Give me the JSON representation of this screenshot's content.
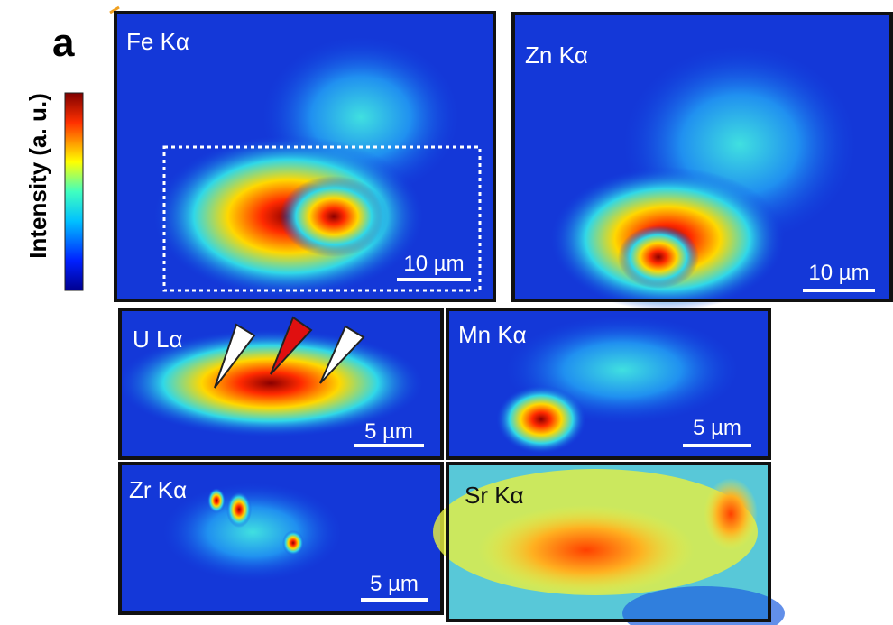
{
  "panel_label": "a",
  "colorbar": {
    "label": "Intensity (a. u.)"
  },
  "maps": [
    {
      "label": "Fe Kα",
      "scale_bar": "10 µm"
    },
    {
      "label": "Zn Kα",
      "scale_bar": "10 µm"
    },
    {
      "label": "U Lα",
      "scale_bar": "5 µm"
    },
    {
      "label": "Mn Kα",
      "scale_bar": "5 µm"
    },
    {
      "label": "Zr Kα",
      "scale_bar": "5 µm"
    },
    {
      "label": "Sr Kα"
    }
  ]
}
